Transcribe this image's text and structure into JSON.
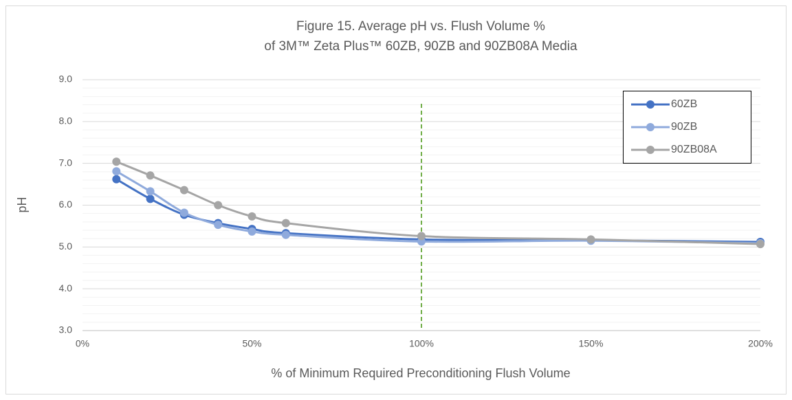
{
  "chart_data": {
    "type": "line",
    "title": [
      "Figure 15.  Average pH vs. Flush Volume %",
      "of 3M™ Zeta Plus™ 60ZB, 90ZB and 90ZB08A Media"
    ],
    "xlabel": "% of Minimum Required Preconditioning Flush Volume",
    "ylabel": "pH",
    "x": [
      10,
      20,
      30,
      40,
      50,
      60,
      100,
      150,
      200
    ],
    "series": [
      {
        "name": "60ZB",
        "color": "#4472c4",
        "values": [
          6.62,
          6.15,
          5.77,
          5.57,
          5.43,
          5.33,
          5.18,
          5.16,
          5.12
        ]
      },
      {
        "name": "90ZB",
        "color": "#8faadc",
        "values": [
          6.81,
          6.33,
          5.82,
          5.53,
          5.37,
          5.29,
          5.13,
          5.15,
          5.09
        ]
      },
      {
        "name": "90ZB08A",
        "color": "#a5a5a5",
        "values": [
          7.04,
          6.71,
          6.36,
          6.0,
          5.73,
          5.57,
          5.26,
          5.18,
          5.07
        ]
      }
    ],
    "xlim": [
      0,
      200
    ],
    "xticks": [
      {
        "value": 0,
        "label": "0%"
      },
      {
        "value": 50,
        "label": "50%"
      },
      {
        "value": 100,
        "label": "100%"
      },
      {
        "value": 150,
        "label": "150%"
      },
      {
        "value": 200,
        "label": "200%"
      }
    ],
    "ylim": [
      3,
      9
    ],
    "yticks": [
      {
        "value": 3,
        "label": "3.0"
      },
      {
        "value": 4,
        "label": "4.0"
      },
      {
        "value": 5,
        "label": "5.0"
      },
      {
        "value": 6,
        "label": "6.0"
      },
      {
        "value": 7,
        "label": "7.0"
      },
      {
        "value": 8,
        "label": "8.0"
      },
      {
        "value": 9,
        "label": "9.0"
      }
    ],
    "yminor_step": 0.2,
    "grid": true,
    "vline": {
      "x": 100,
      "color": "#70ad47"
    },
    "legend": "upper right"
  }
}
